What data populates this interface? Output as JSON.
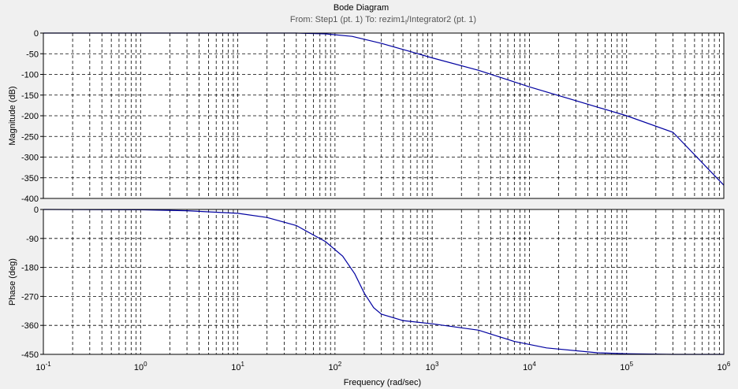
{
  "chart_data": {
    "type": "line",
    "title": "Bode Diagram",
    "subtitle": "From: Step1 (pt. 1)  To: rezim1",
    "subtitle_subscript": "I",
    "subtitle_tail": "/Integrator2 (pt. 1)",
    "xlabel": "Frequency  (rad/sec)",
    "x_scale": "log",
    "xlim": [
      0.1,
      1000000
    ],
    "x_ticks": [
      {
        "value": 0.1,
        "base": "10",
        "exp": "-1"
      },
      {
        "value": 1,
        "base": "10",
        "exp": "0"
      },
      {
        "value": 10,
        "base": "10",
        "exp": "1"
      },
      {
        "value": 100,
        "base": "10",
        "exp": "2"
      },
      {
        "value": 1000,
        "base": "10",
        "exp": "3"
      },
      {
        "value": 10000,
        "base": "10",
        "exp": "4"
      },
      {
        "value": 100000,
        "base": "10",
        "exp": "5"
      },
      {
        "value": 1000000,
        "base": "10",
        "exp": "6"
      }
    ],
    "grid": true,
    "line_color": "#0000a0",
    "panels": [
      {
        "ylabel": "Magnitude (dB)",
        "ylim": [
          -400,
          0
        ],
        "y_ticks": [
          0,
          -50,
          -100,
          -150,
          -200,
          -250,
          -300,
          -350,
          -400
        ],
        "x": [
          0.1,
          1,
          10,
          20,
          40,
          80,
          150,
          300,
          600,
          1000,
          3000,
          10000,
          100000,
          300000,
          1000000
        ],
        "values": [
          0,
          0,
          0,
          0,
          0,
          -2,
          -8,
          -25,
          -45,
          -60,
          -90,
          -130,
          -200,
          -240,
          -368
        ]
      },
      {
        "ylabel": "Phase (deg)",
        "ylim": [
          -450,
          0
        ],
        "y_ticks": [
          0,
          -90,
          -180,
          -270,
          -360,
          -450
        ],
        "x": [
          0.1,
          1,
          3,
          10,
          20,
          40,
          80,
          120,
          160,
          200,
          250,
          300,
          500,
          1000,
          3000,
          7000,
          15000,
          50000,
          100000,
          300000,
          1000000
        ],
        "values": [
          0,
          -1,
          -4,
          -12,
          -25,
          -50,
          -100,
          -145,
          -200,
          -260,
          -305,
          -325,
          -345,
          -355,
          -375,
          -410,
          -430,
          -445,
          -448,
          -450,
          -450
        ]
      }
    ]
  }
}
